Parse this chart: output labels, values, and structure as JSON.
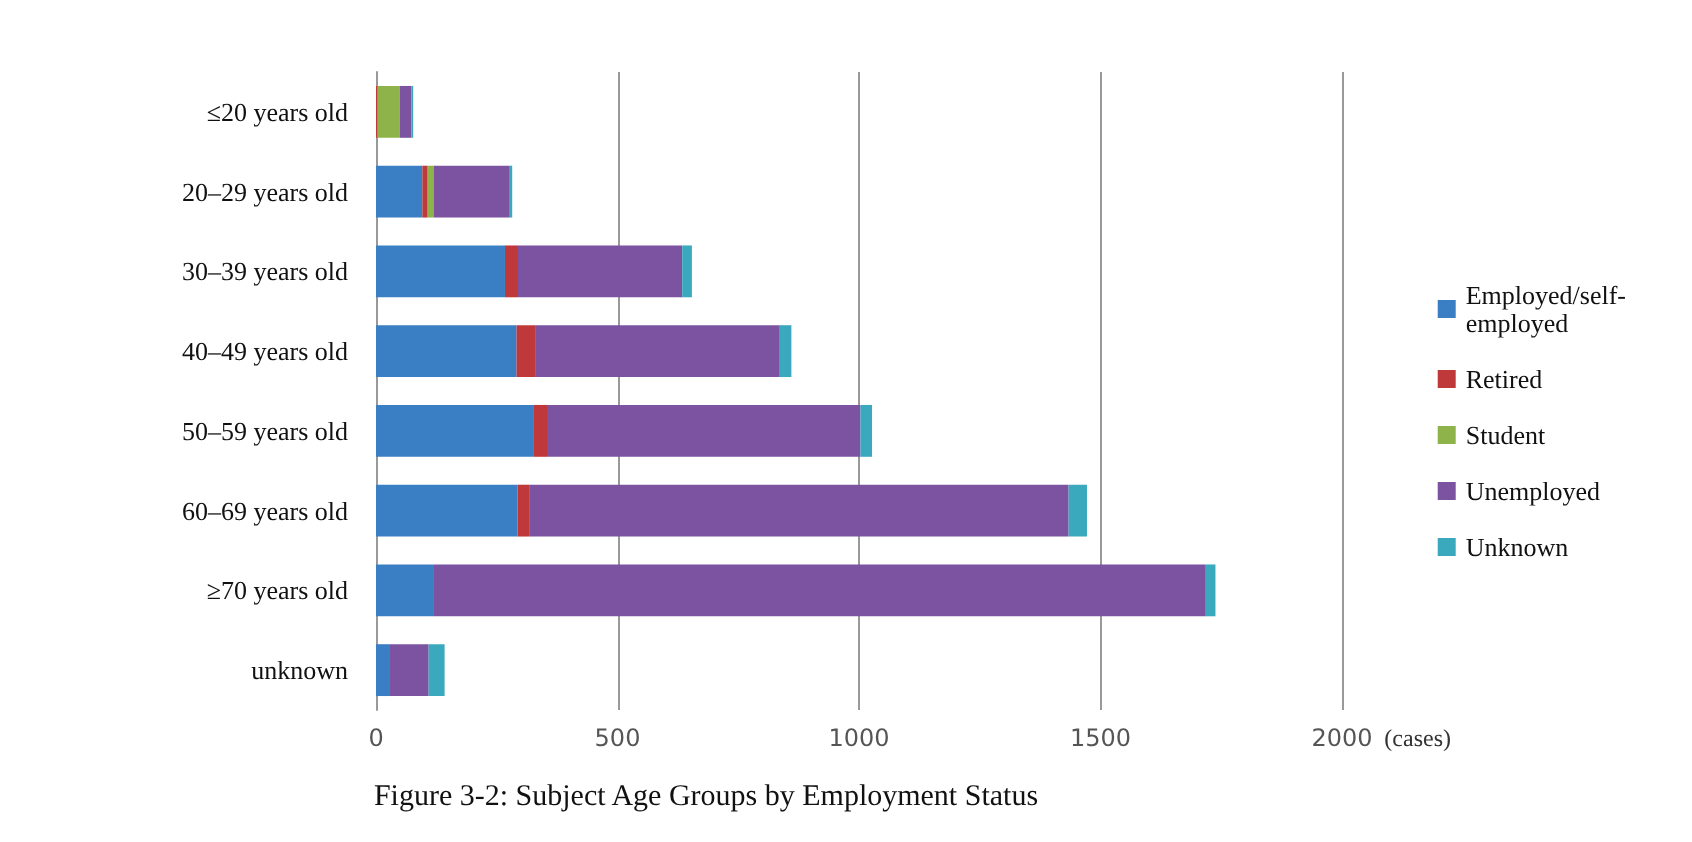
{
  "chart_data": {
    "type": "bar",
    "orientation": "horizontal",
    "stacked": true,
    "title": "Figure 3-2: Subject Age Groups by Employment Status",
    "xlabel": "(cases)",
    "categories": [
      "≤20 years old",
      "20–29 years old",
      "30–39 years old",
      "40–49 years old",
      "50–59 years old",
      "60–69 years old",
      "≥70 years old",
      "unknown"
    ],
    "series": [
      {
        "name": "Employed/self-employed",
        "color": "#3a7fc4",
        "values": [
          0,
          96,
          267,
          291,
          327,
          293,
          120,
          29
        ]
      },
      {
        "name": "Retired",
        "color": "#c0393a",
        "values": [
          3,
          11,
          27,
          40,
          27,
          24,
          0,
          0
        ]
      },
      {
        "name": "Student",
        "color": "#8db34a",
        "values": [
          46,
          13,
          0,
          0,
          0,
          0,
          0,
          0
        ]
      },
      {
        "name": "Unemployed",
        "color": "#7b53a0",
        "values": [
          24,
          157,
          340,
          505,
          649,
          1117,
          1598,
          80
        ]
      },
      {
        "name": "Unknown",
        "color": "#3aa8bd",
        "values": [
          4,
          5,
          20,
          24,
          24,
          38,
          20,
          33
        ]
      }
    ],
    "xlim": [
      0,
      2000
    ],
    "xticks": [
      0,
      500,
      1000,
      1500,
      2000
    ],
    "grid": "x",
    "legend": "right"
  }
}
